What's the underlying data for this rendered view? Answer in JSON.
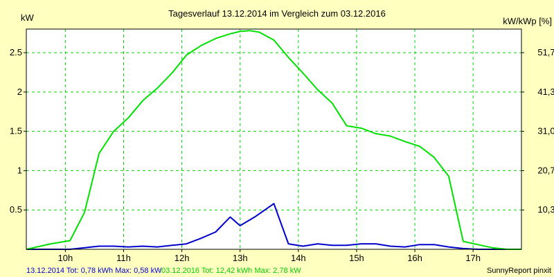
{
  "chart_data": {
    "type": "line",
    "title": "Tagesverlauf 13.12.2014 im Vergleich zum 03.12.2016",
    "ylabel_left": "kW",
    "ylabel_right": "kW/kWp [%]",
    "xlim": [
      9.33,
      17.83
    ],
    "ylim": [
      0,
      2.8
    ],
    "grid": true,
    "x_ticks": [
      {
        "x": 10,
        "label": "10h"
      },
      {
        "x": 11,
        "label": "11h"
      },
      {
        "x": 12,
        "label": "12h"
      },
      {
        "x": 13,
        "label": "13h"
      },
      {
        "x": 14,
        "label": "14h"
      },
      {
        "x": 15,
        "label": "15h"
      },
      {
        "x": 16,
        "label": "16h"
      },
      {
        "x": 17,
        "label": "17h"
      }
    ],
    "y_ticks_left": [
      {
        "y": 0.5,
        "label": "0.5"
      },
      {
        "y": 1.0,
        "label": "1"
      },
      {
        "y": 1.5,
        "label": "1.5"
      },
      {
        "y": 2.0,
        "label": "2"
      },
      {
        "y": 2.5,
        "label": "2.5"
      }
    ],
    "y_ticks_right": [
      {
        "y": 0.5,
        "label": "10,3"
      },
      {
        "y": 1.0,
        "label": "20,7"
      },
      {
        "y": 1.5,
        "label": "31,0"
      },
      {
        "y": 2.0,
        "label": "41,3"
      },
      {
        "y": 2.5,
        "label": "51,7"
      }
    ],
    "series": [
      {
        "name": "13.12.2014",
        "color": "#0000cc",
        "x": [
          9.33,
          9.75,
          10.08,
          10.33,
          10.58,
          10.83,
          11.08,
          11.33,
          11.58,
          11.83,
          12.08,
          12.33,
          12.58,
          12.83,
          13.0,
          13.25,
          13.58,
          13.83,
          14.08,
          14.33,
          14.58,
          14.83,
          15.08,
          15.33,
          15.58,
          15.83,
          16.08,
          16.33,
          16.58,
          16.83,
          17.08,
          17.33,
          17.58,
          17.83
        ],
        "y": [
          0.0,
          0.0,
          0.0,
          0.02,
          0.04,
          0.04,
          0.03,
          0.04,
          0.03,
          0.05,
          0.07,
          0.14,
          0.22,
          0.41,
          0.3,
          0.41,
          0.58,
          0.07,
          0.04,
          0.07,
          0.05,
          0.05,
          0.07,
          0.07,
          0.04,
          0.03,
          0.06,
          0.06,
          0.03,
          0.01,
          0.0,
          0.0,
          0.0,
          0.0
        ]
      },
      {
        "name": "03.12.2016",
        "color": "#00e000",
        "x": [
          9.33,
          9.75,
          10.08,
          10.33,
          10.58,
          10.83,
          11.08,
          11.33,
          11.58,
          11.83,
          12.08,
          12.33,
          12.58,
          12.83,
          13.0,
          13.17,
          13.33,
          13.58,
          13.83,
          14.08,
          14.33,
          14.58,
          14.83,
          15.08,
          15.33,
          15.58,
          15.83,
          16.08,
          16.33,
          16.58,
          16.83,
          17.08,
          17.33,
          17.58,
          17.83
        ],
        "y": [
          0.0,
          0.07,
          0.11,
          0.47,
          1.22,
          1.5,
          1.67,
          1.89,
          2.05,
          2.24,
          2.47,
          2.59,
          2.68,
          2.74,
          2.77,
          2.78,
          2.76,
          2.66,
          2.44,
          2.24,
          2.03,
          1.86,
          1.57,
          1.54,
          1.47,
          1.44,
          1.37,
          1.31,
          1.17,
          0.93,
          0.1,
          0.06,
          0.02,
          0.0,
          0.0
        ]
      }
    ]
  },
  "footer": {
    "series1_summary": "13.12.2014 Tot: 0,78 kWh Max: 0,58 kW",
    "series2_summary": "03.12.2016 Tot: 12,42 kWh Max: 2,78 kW",
    "brand": "SunnyReport pinxit"
  },
  "colors": {
    "background": "#ffffc0",
    "plot_background": "#ffffff",
    "grid": "#00d000",
    "axis": "#000000"
  }
}
